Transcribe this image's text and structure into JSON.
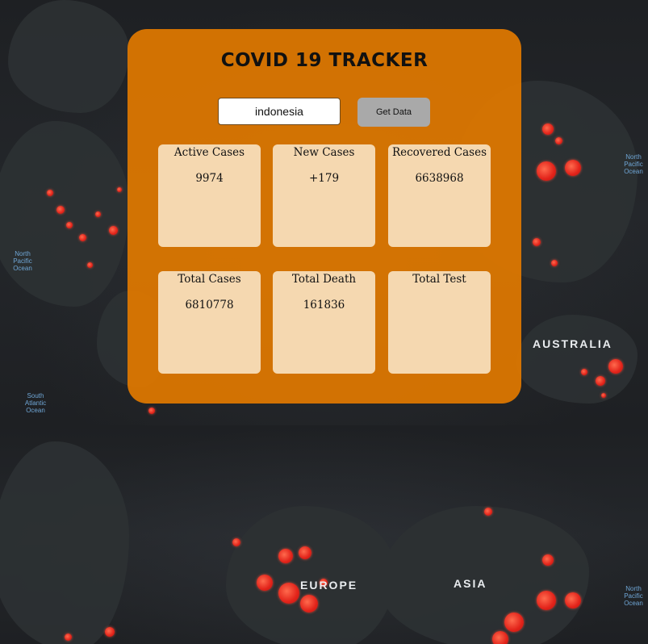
{
  "header": {
    "title": "COVID 19 TRACKER"
  },
  "search": {
    "value": "indonesia",
    "button_label": "Get Data"
  },
  "stats": [
    {
      "label": "Active Cases",
      "value": "9974"
    },
    {
      "label": "New Cases",
      "value": "+179"
    },
    {
      "label": "Recovered Cases",
      "value": "6638968"
    },
    {
      "label": "Total Cases",
      "value": "6810778"
    },
    {
      "label": "Total Death",
      "value": "161836"
    },
    {
      "label": "Total Test",
      "value": ""
    }
  ],
  "background": {
    "region_labels": [
      "AUSTRALIA",
      "ASIA",
      "EUROPE"
    ],
    "map_labels": [
      "North Pacific Ocean",
      "South Atlantic Ocean",
      "North Pacific Ocean"
    ],
    "colors": {
      "card": "#e07900",
      "stat_box": "#f5d8b0",
      "button": "#a9a9a9",
      "case_dot": "#e2231a"
    }
  }
}
